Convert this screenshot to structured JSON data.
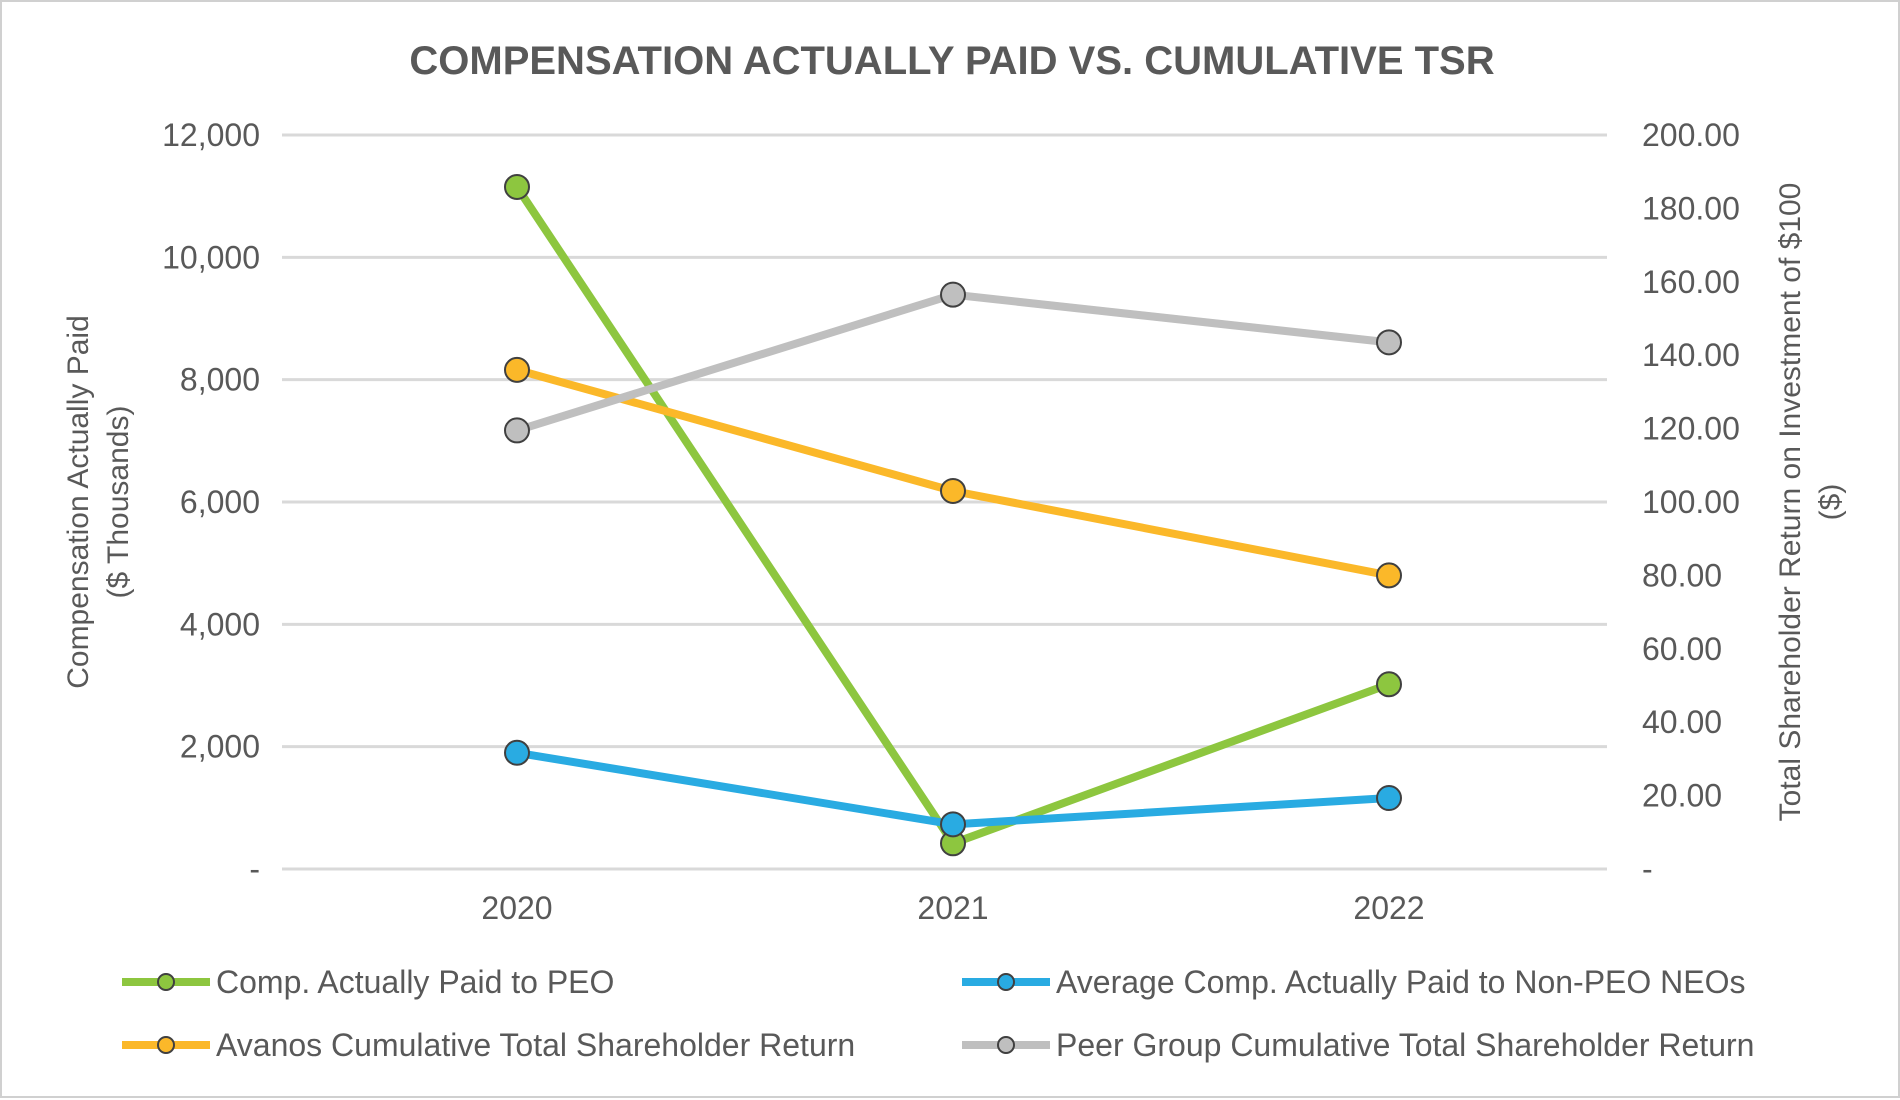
{
  "chart_data": {
    "type": "line",
    "title": "COMPENSATION ACTUALLY PAID VS. CUMULATIVE TSR",
    "categories": [
      "2020",
      "2021",
      "2022"
    ],
    "y_left": {
      "label_line1": "Compensation Actually Paid",
      "label_line2": "($ Thousands)",
      "range": [
        0,
        12000
      ],
      "ticks": [
        "-",
        "2,000",
        "4,000",
        "6,000",
        "8,000",
        "10,000",
        "12,000"
      ]
    },
    "y_right": {
      "label_line1": "Total Shareholder Return on Investment of $100",
      "label_line2": "($)",
      "range": [
        0,
        200
      ],
      "ticks": [
        "-",
        "20.00",
        "40.00",
        "60.00",
        "80.00",
        "100.00",
        "120.00",
        "140.00",
        "160.00",
        "180.00",
        "200.00"
      ]
    },
    "series": [
      {
        "name": "Comp. Actually Paid to PEO",
        "axis": "left",
        "color": "#8dc63f",
        "values": [
          11150,
          420,
          3020
        ]
      },
      {
        "name": "Average Comp. Actually Paid to Non-PEO NEOs",
        "axis": "left",
        "color": "#29abe2",
        "values": [
          1900,
          730,
          1160
        ]
      },
      {
        "name": "Avanos Cumulative Total Shareholder Return",
        "axis": "right",
        "color": "#fbb829",
        "values": [
          136,
          103,
          80
        ]
      },
      {
        "name": "Peer Group Cumulative Total Shareholder Return",
        "axis": "right",
        "color": "#bfbfbf",
        "values": [
          119.5,
          156.5,
          143.5
        ]
      }
    ],
    "grid": true,
    "legend_position": "bottom"
  }
}
